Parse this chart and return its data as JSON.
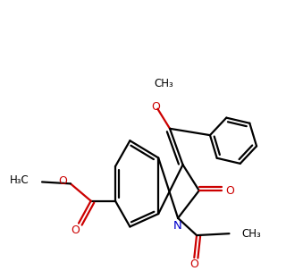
{
  "bg_color": "#ffffff",
  "bond_color": "#000000",
  "N_color": "#0000cc",
  "O_color": "#cc0000",
  "lw": 1.6,
  "dbo": 0.12,
  "figsize": [
    3.39,
    3.03
  ],
  "dpi": 100,
  "xlim": [
    0.5,
    9.5
  ],
  "ylim": [
    1.0,
    9.5
  ]
}
